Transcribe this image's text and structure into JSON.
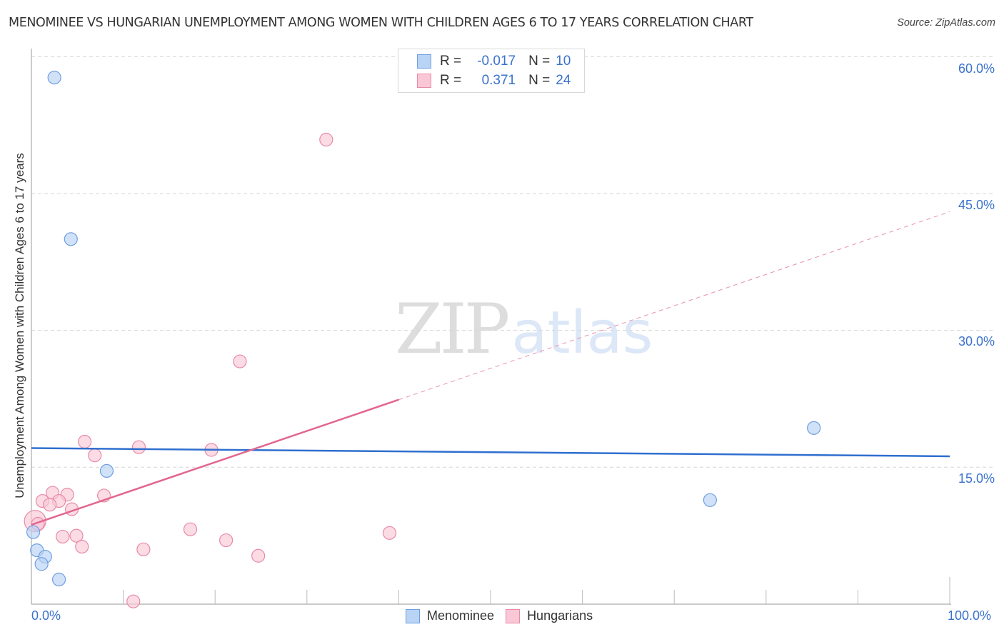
{
  "header": {
    "title": "MENOMINEE VS HUNGARIAN UNEMPLOYMENT AMONG WOMEN WITH CHILDREN AGES 6 TO 17 YEARS CORRELATION CHART",
    "source": "Source: ZipAtlas.com"
  },
  "watermark": {
    "zip": "ZIP",
    "atlas": "atlas"
  },
  "legend": {
    "rows": [
      {
        "r_label": "R =",
        "r_value": "-0.017",
        "n_label": "N =",
        "n_value": "10",
        "color": "#b9d3f5",
        "border": "#6f9fe0"
      },
      {
        "r_label": "R =",
        "r_value": "0.371",
        "n_label": "N =",
        "n_value": "24",
        "color": "#f9c7d6",
        "border": "#e88aa8"
      }
    ]
  },
  "bottom_legend": {
    "items": [
      {
        "label": "Menominee",
        "color": "#b9d3f5",
        "border": "#6f9fe0"
      },
      {
        "label": "Hungarians",
        "color": "#f9c7d6",
        "border": "#e88aa8"
      }
    ]
  },
  "axes": {
    "x_min_label": "0.0%",
    "x_max_label": "100.0%",
    "y_ticks": [
      "60.0%",
      "45.0%",
      "30.0%",
      "15.0%"
    ],
    "y_label": "Unemployment Among Women with Children Ages 6 to 17 years"
  },
  "chart_data": {
    "type": "scatter",
    "title": "MENOMINEE VS HUNGARIAN UNEMPLOYMENT AMONG WOMEN WITH CHILDREN AGES 6 TO 17 YEARS CORRELATION CHART",
    "xlabel": "",
    "ylabel": "Unemployment Among Women with Children Ages 6 to 17 years",
    "xlim": [
      0,
      100
    ],
    "ylim": [
      0,
      62
    ],
    "x_ticks": [
      "0.0%",
      "100.0%"
    ],
    "y_ticks": [
      15,
      30,
      45,
      60
    ],
    "grid": true,
    "legend_position": "bottom",
    "series": [
      {
        "name": "Menominee",
        "color": "#6f9fe0",
        "fill": "#b9d3f5",
        "r": -0.017,
        "n": 10,
        "points": [
          [
            2.5,
            57.7
          ],
          [
            4.3,
            40.0
          ],
          [
            8.2,
            14.6
          ],
          [
            85.2,
            19.3
          ],
          [
            73.9,
            11.4
          ],
          [
            0.2,
            7.9
          ],
          [
            0.6,
            5.9
          ],
          [
            1.5,
            5.2
          ],
          [
            1.1,
            4.4
          ],
          [
            3.0,
            2.7
          ]
        ],
        "trend": {
          "x": [
            0,
            100
          ],
          "y": [
            17.1,
            16.2
          ],
          "style": "solid"
        }
      },
      {
        "name": "Hungarians",
        "color": "#e88aa8",
        "fill": "#f9c7d6",
        "r": 0.371,
        "n": 24,
        "points": [
          [
            32.1,
            50.9
          ],
          [
            22.7,
            26.6
          ],
          [
            5.8,
            17.8
          ],
          [
            11.7,
            17.2
          ],
          [
            19.6,
            16.9
          ],
          [
            6.9,
            16.3
          ],
          [
            2.3,
            12.2
          ],
          [
            3.9,
            12.0
          ],
          [
            7.9,
            11.9
          ],
          [
            1.2,
            11.3
          ],
          [
            3.0,
            11.3
          ],
          [
            2.0,
            10.9
          ],
          [
            4.4,
            10.4
          ],
          [
            0.4,
            9.1
          ],
          [
            0.7,
            8.8
          ],
          [
            17.3,
            8.2
          ],
          [
            3.4,
            7.4
          ],
          [
            4.9,
            7.5
          ],
          [
            39.0,
            7.8
          ],
          [
            21.2,
            7.0
          ],
          [
            5.5,
            6.3
          ],
          [
            12.2,
            6.0
          ],
          [
            24.7,
            5.3
          ],
          [
            11.1,
            0.3
          ]
        ],
        "trend": {
          "x": [
            0,
            40,
            100
          ],
          "y": [
            8.7,
            22.4,
            43.0
          ],
          "style": "solid-then-dashed"
        }
      }
    ]
  }
}
